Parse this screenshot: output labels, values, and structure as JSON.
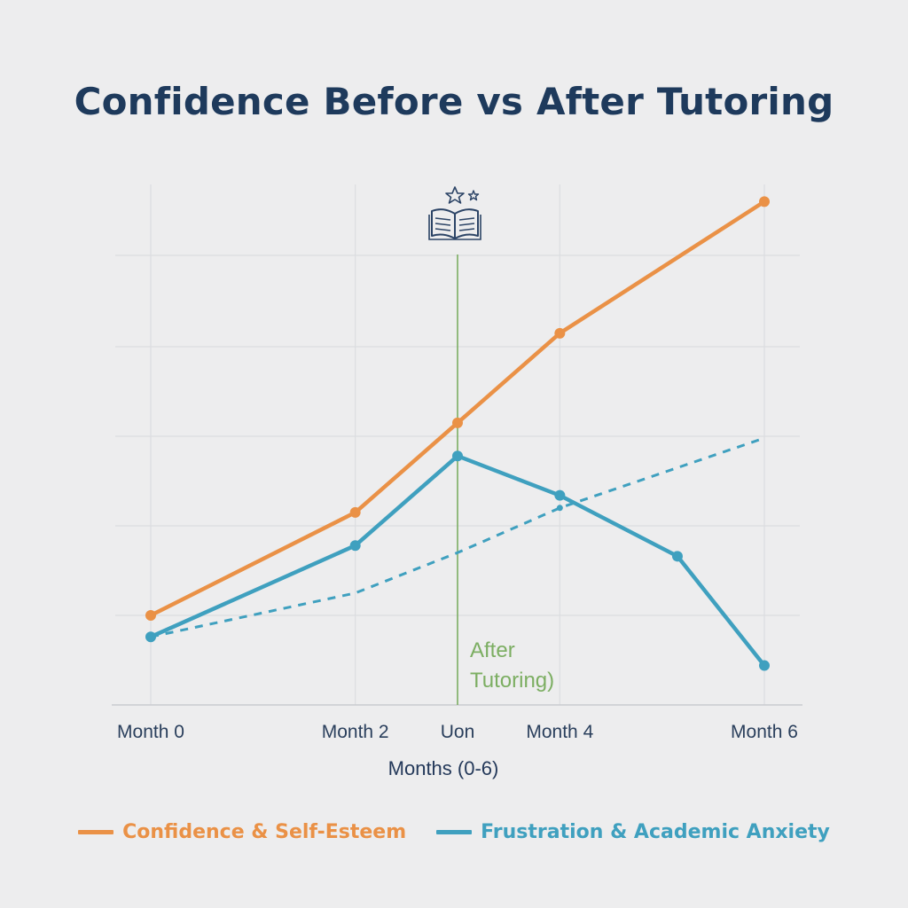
{
  "title": "Confidence Before vs After Tutoring",
  "colors": {
    "confidence": "#ea9146",
    "frustration": "#3fa0bf",
    "annotation": "#7cae62",
    "grid": "#dcdde0",
    "icon": "#2c4466"
  },
  "icon": "book-with-stars-icon",
  "legend": {
    "confidence_label": "Confidence & Self-Esteem",
    "frustration_label": "Frustration & Academic Anxiety"
  },
  "chart_data": {
    "type": "line",
    "title": "Confidence Before vs After Tutoring",
    "xlabel": "Months (0-6)",
    "ylabel": "",
    "x_ticks": [
      {
        "value": 0,
        "label": "Month 0"
      },
      {
        "value": 2,
        "label": "Month 2"
      },
      {
        "value": 3,
        "label": "Uon"
      },
      {
        "value": 4,
        "label": "Month 4"
      },
      {
        "value": 6,
        "label": "Month 6"
      }
    ],
    "xlim": [
      -0.5,
      6.5
    ],
    "ylim": [
      0,
      6
    ],
    "grid": true,
    "legend_position": "bottom",
    "annotation": {
      "x": 3,
      "line1": "After",
      "line2": "Tutoring)"
    },
    "series": [
      {
        "name": "Confidence & Self-Esteem",
        "style": "solid",
        "x": [
          0,
          2,
          3,
          4,
          6
        ],
        "y": [
          1.0,
          2.15,
          3.15,
          4.15,
          5.62
        ]
      },
      {
        "name": "Frustration & Academic Anxiety",
        "style": "solid",
        "x": [
          0,
          2,
          3,
          4,
          5.15,
          6
        ],
        "y": [
          0.76,
          1.78,
          2.78,
          2.34,
          1.66,
          0.44
        ]
      },
      {
        "name": "",
        "style": "dashed",
        "x": [
          0,
          2,
          3,
          4,
          6
        ],
        "y": [
          0.76,
          1.25,
          1.7,
          2.2,
          2.98
        ]
      }
    ]
  }
}
